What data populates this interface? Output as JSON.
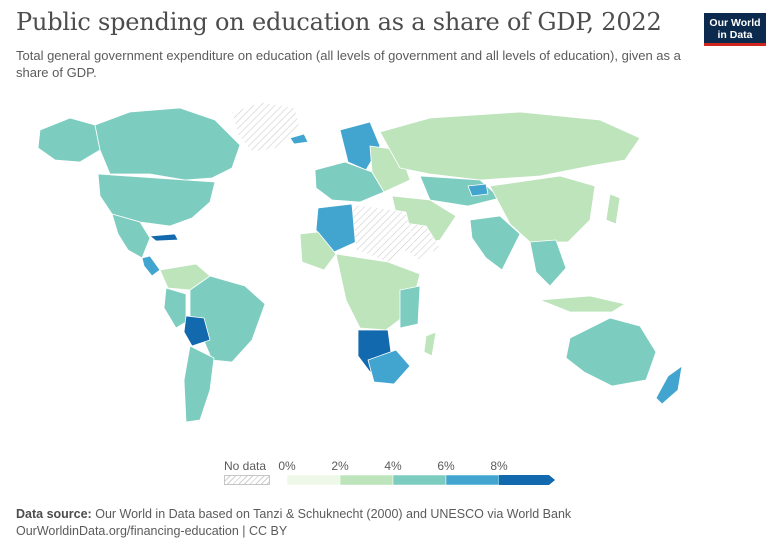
{
  "header": {
    "title": "Public spending on education as a share of GDP, 2022",
    "subtitle": "Total general government expenditure on education (all levels of government and all levels of education), given as a share of GDP.",
    "logo_line1": "Our World",
    "logo_line2": "in Data"
  },
  "legend": {
    "no_data_label": "No data",
    "ticks": [
      "0%",
      "2%",
      "4%",
      "6%",
      "8%"
    ],
    "bin_colors": [
      "#eef8e8",
      "#bde4bb",
      "#7cccc0",
      "#41a5cf",
      "#1369ae"
    ]
  },
  "colors": {
    "ocean": "#ffffff",
    "border": "#ffffff",
    "no_data_hatch": "#cfcfcf"
  },
  "map_data": {
    "type": "choropleth",
    "year": 2022,
    "unit": "% of GDP",
    "regions": [
      {
        "name": "Canada",
        "bin": "4-6%"
      },
      {
        "name": "United States",
        "bin": "4-6%"
      },
      {
        "name": "Mexico",
        "bin": "4-6%"
      },
      {
        "name": "Cuba",
        "bin": ">8%"
      },
      {
        "name": "Greenland",
        "bin": "no data"
      },
      {
        "name": "Brazil",
        "bin": "4-6%"
      },
      {
        "name": "Bolivia",
        "bin": ">8%"
      },
      {
        "name": "Argentina",
        "bin": "4-6%"
      },
      {
        "name": "Russia",
        "bin": "2-4%"
      },
      {
        "name": "Sweden",
        "bin": "6-8%"
      },
      {
        "name": "Iceland",
        "bin": "6-8%"
      },
      {
        "name": "Algeria",
        "bin": "6-8%"
      },
      {
        "name": "Libya",
        "bin": "no data"
      },
      {
        "name": "Egypt",
        "bin": "no data"
      },
      {
        "name": "Namibia",
        "bin": ">8%"
      },
      {
        "name": "Botswana",
        "bin": ">8%"
      },
      {
        "name": "South Africa",
        "bin": "6-8%"
      },
      {
        "name": "China",
        "bin": "2-4%"
      },
      {
        "name": "India",
        "bin": "4-6%"
      },
      {
        "name": "Kazakhstan",
        "bin": "4-6%"
      },
      {
        "name": "Kyrgyzstan",
        "bin": "6-8%"
      },
      {
        "name": "Australia",
        "bin": "4-6%"
      },
      {
        "name": "New Zealand",
        "bin": "6-8%"
      }
    ]
  },
  "footer": {
    "source_label": "Data source:",
    "source_text": "Our World in Data based on Tanzi & Schuknecht (2000) and UNESCO via World Bank",
    "url_line": "OurWorldinData.org/financing-education | CC BY"
  }
}
